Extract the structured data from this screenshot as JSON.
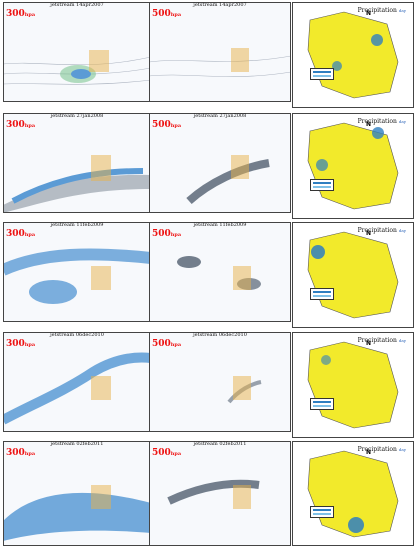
{
  "figure": {
    "rows": [
      {
        "id": "r1",
        "panels": [
          {
            "title": "jetstream 14apr2007",
            "level": "300",
            "level_unit": "hpa"
          },
          {
            "title": "jetstream 14apr2007",
            "level": "500",
            "level_unit": "hpa"
          }
        ],
        "map": {
          "title": "Precipitation",
          "unit": "day"
        }
      },
      {
        "id": "r2",
        "panels": [
          {
            "title": "jetstream 27jan2008",
            "level": "300",
            "level_unit": "hpa"
          },
          {
            "title": "jetstream 27jan2008",
            "level": "500",
            "level_unit": "hpa"
          }
        ],
        "map": {
          "title": "Precipitation",
          "unit": "day"
        }
      },
      {
        "id": "r3",
        "panels": [
          {
            "title": "jetstream 11feb2009",
            "level": "300",
            "level_unit": "hpa"
          },
          {
            "title": "jetstream 11feb2009",
            "level": "500",
            "level_unit": "hpa"
          }
        ],
        "map": {
          "title": "Precipitation",
          "unit": "day"
        }
      },
      {
        "id": "r4",
        "panels": [
          {
            "title": "jetstream 06dec2010",
            "level": "300",
            "level_unit": "hpa"
          },
          {
            "title": "jetstream 06dec2010",
            "level": "500",
            "level_unit": "hpa"
          }
        ],
        "map": {
          "title": "Precipitation",
          "unit": "day"
        }
      },
      {
        "id": "r5",
        "panels": [
          {
            "title": "jetstream 02feb2011",
            "level": "300",
            "level_unit": "hpa"
          },
          {
            "title": "jetstream 02feb2011",
            "level": "500",
            "level_unit": "hpa"
          }
        ],
        "map": {
          "title": "Precipitation",
          "unit": "day"
        }
      }
    ],
    "north_label": "N",
    "colors": {
      "jet_blue": "#5b9bd5",
      "jet_dark": "#3a4a5c",
      "contour_gray": "#9aa3b2",
      "iran_orange": "#e8b24a",
      "precip_yellow": "#f2ea2b",
      "precip_blue": "#2f7fc1",
      "level_red": "#e11111"
    }
  }
}
